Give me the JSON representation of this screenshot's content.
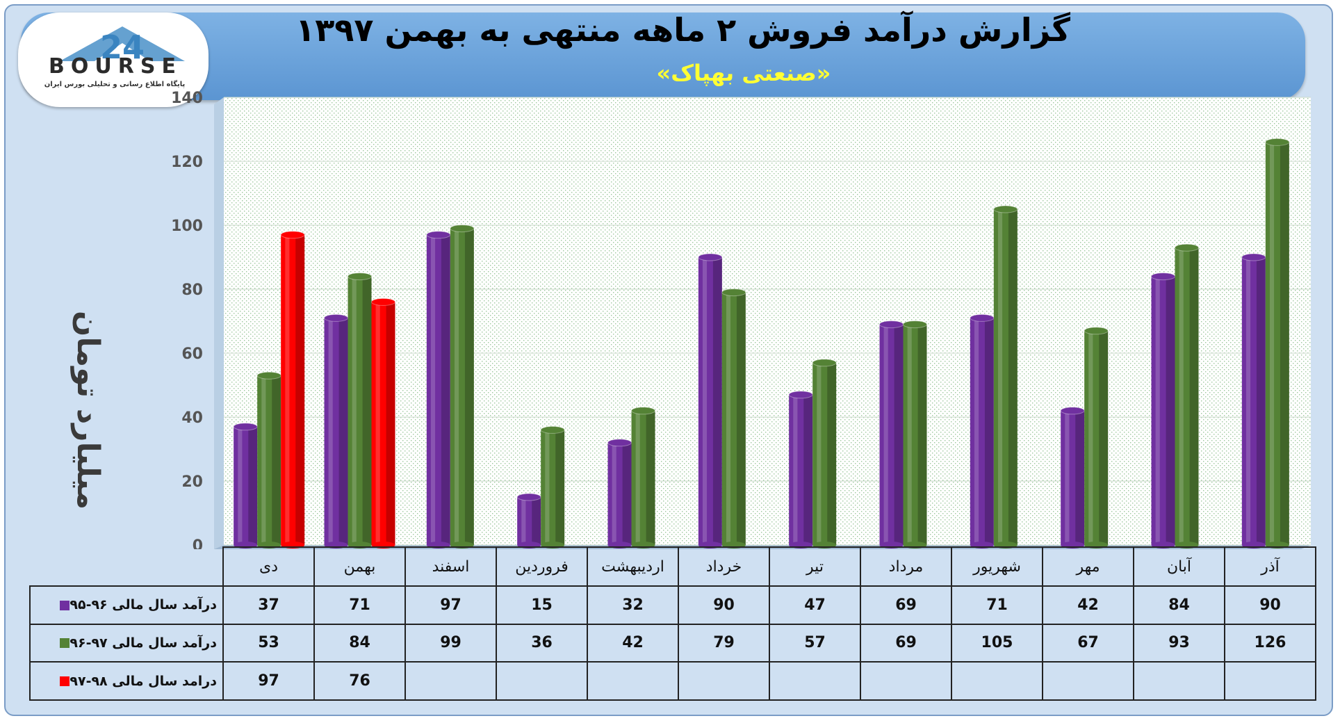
{
  "header": {
    "title": "گزارش درآمد فروش ۲ ماهه منتهی به بهمن ۱۳۹۷",
    "subtitle": "«صنعتی بهپاک»"
  },
  "logo": {
    "word": "BOURSE",
    "caption": "پایگاه اطلاع رسانی و تحلیلی بورس ایران"
  },
  "colors": {
    "series1": "#7030a0",
    "series2": "#548235",
    "series3": "#ff0000",
    "header": "#5b9bd5",
    "subtitle": "#ffff33"
  },
  "chart_data": {
    "type": "bar",
    "title": "گزارش درآمد فروش ۲ ماهه منتهی به بهمن ۱۳۹۷",
    "subtitle": "«صنعتی بهپاک»",
    "ylabel": "میلیارد تومان",
    "ylim": [
      0,
      140
    ],
    "yticks": [
      "0",
      "20",
      "40",
      "60",
      "80",
      "100",
      "120",
      "140"
    ],
    "grid": true,
    "categories": [
      "دی",
      "بهمن",
      "اسفند",
      "فروردین",
      "اردیبهشت",
      "خرداد",
      "تیر",
      "مرداد",
      "شهریور",
      "مهر",
      "آبان",
      "آذر"
    ],
    "series": [
      {
        "name": "درآمد سال مالی ۹۶-۹۵",
        "color": "#7030a0",
        "values": [
          37,
          71,
          97,
          15,
          32,
          90,
          47,
          69,
          71,
          42,
          84,
          90
        ]
      },
      {
        "name": "درآمد سال مالی ۹۷-۹۶",
        "color": "#548235",
        "values": [
          53,
          84,
          99,
          36,
          42,
          79,
          57,
          69,
          105,
          67,
          93,
          126
        ]
      },
      {
        "name": "درامد سال مالی ۹۸-۹۷",
        "color": "#ff0000",
        "values": [
          97,
          76,
          null,
          null,
          null,
          null,
          null,
          null,
          null,
          null,
          null,
          null
        ]
      }
    ]
  },
  "table": {
    "rows": [
      {
        "label": "درآمد سال مالی ۹۶-۹۵",
        "cells": [
          "37",
          "71",
          "97",
          "15",
          "32",
          "90",
          "47",
          "69",
          "71",
          "42",
          "84",
          "90"
        ]
      },
      {
        "label": "درآمد سال مالی ۹۷-۹۶",
        "cells": [
          "53",
          "84",
          "99",
          "36",
          "42",
          "79",
          "57",
          "69",
          "105",
          "67",
          "93",
          "126"
        ]
      },
      {
        "label": "درامد سال مالی ۹۸-۹۷",
        "cells": [
          "97",
          "76",
          "",
          "",
          "",
          "",
          "",
          "",
          "",
          "",
          "",
          ""
        ]
      }
    ]
  }
}
